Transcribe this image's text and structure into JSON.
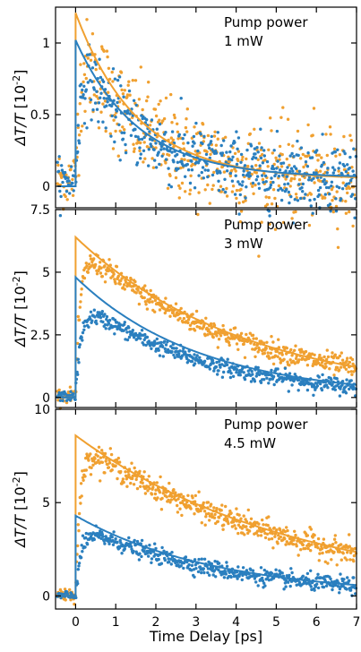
{
  "figure": {
    "xlabel": "Time Delay [ps]",
    "xticks": [
      "0",
      "1",
      "2",
      "3",
      "4",
      "5",
      "6",
      "7"
    ],
    "xlim": [
      -0.5,
      7.0
    ]
  },
  "colors": {
    "orange": "#f0a030",
    "blue": "#2a7fbf"
  },
  "chart_data": [
    {
      "type": "scatter",
      "ylabel_html": "ΔT/T [10⁻²]",
      "ylabel": {
        "main": "ΔT/T",
        "unit": "[10",
        "exp": "-2",
        "close": "]"
      },
      "annotation": [
        "Pump power",
        "1 mW"
      ],
      "ylim": [
        -0.15,
        1.25
      ],
      "yticks": [
        {
          "v": 0,
          "label": "0"
        },
        {
          "v": 0.5,
          "label": "0.5"
        },
        {
          "v": 1,
          "label": "1"
        }
      ],
      "series": [
        {
          "color": "orange",
          "fit_peak": 1.16,
          "tau": 1.55,
          "offset": 0.05,
          "noise": 0.17,
          "data_peak": 1.02,
          "baseline": 0.05
        },
        {
          "color": "blue",
          "fit_peak": 0.96,
          "tau": 1.55,
          "offset": 0.06,
          "noise": 0.12,
          "data_peak": 0.88,
          "baseline": 0.04
        }
      ]
    },
    {
      "type": "scatter",
      "ylabel": {
        "main": "ΔT/T",
        "unit": "[10",
        "exp": "-2",
        "close": "]"
      },
      "annotation": [
        "Pump power",
        "3 mW"
      ],
      "ylim": [
        -0.4,
        7.5
      ],
      "yticks": [
        {
          "v": 0,
          "label": "0"
        },
        {
          "v": 2.5,
          "label": "2.5"
        },
        {
          "v": 5,
          "label": "5"
        },
        {
          "v": 7.5,
          "label": "7.5"
        }
      ],
      "series": [
        {
          "color": "orange",
          "fit_peak": 6.4,
          "tau": 4.2,
          "offset": 0.0,
          "noise": 0.22,
          "data_peak": 6.1,
          "baseline": 0.1
        },
        {
          "color": "blue",
          "fit_peak": 4.8,
          "tau": 3.1,
          "offset": 0.0,
          "noise": 0.16,
          "data_peak": 4.0,
          "baseline": 0.05
        }
      ]
    },
    {
      "type": "scatter",
      "ylabel": {
        "main": "ΔT/T",
        "unit": "[10",
        "exp": "-2",
        "close": "]"
      },
      "annotation": [
        "Pump power",
        "4.5 mW"
      ],
      "ylim": [
        -0.7,
        10
      ],
      "yticks": [
        {
          "v": 0,
          "label": "0"
        },
        {
          "v": 5,
          "label": "5"
        },
        {
          "v": 10,
          "label": "10"
        }
      ],
      "series": [
        {
          "color": "orange",
          "fit_peak": 8.6,
          "tau": 5.4,
          "offset": 0.0,
          "noise": 0.32,
          "data_peak": 8.3,
          "baseline": 0.1
        },
        {
          "color": "blue",
          "fit_peak": 4.3,
          "tau": 3.5,
          "offset": 0.0,
          "noise": 0.22,
          "data_peak": 3.9,
          "baseline": 0.0
        }
      ]
    }
  ]
}
